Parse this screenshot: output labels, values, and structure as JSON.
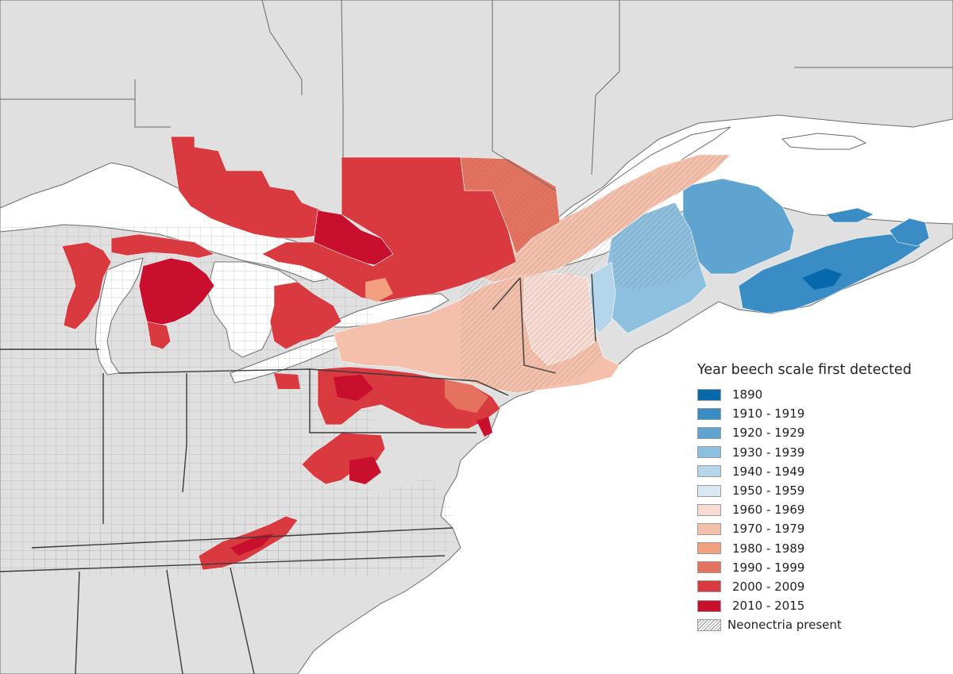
{
  "legend": {
    "title": "Year beech scale first detected",
    "items": [
      {
        "label": "1890",
        "color": "#0868ac"
      },
      {
        "label": "1910 - 1919",
        "color": "#3a8cc4"
      },
      {
        "label": "1920 - 1929",
        "color": "#5fa4d0"
      },
      {
        "label": "1930 - 1939",
        "color": "#8dbfdf"
      },
      {
        "label": "1940 - 1949",
        "color": "#b5d5ea"
      },
      {
        "label": "1950 - 1959",
        "color": "#dbe8f2"
      },
      {
        "label": "1960 - 1969",
        "color": "#f8dcd3"
      },
      {
        "label": "1970 - 1979",
        "color": "#f4c0ab"
      },
      {
        "label": "1980 - 1989",
        "color": "#f2a07f"
      },
      {
        "label": "1990 - 1999",
        "color": "#e5725e"
      },
      {
        "label": "2000 - 2009",
        "color": "#d83a3f"
      },
      {
        "label": "2010 - 2015",
        "color": "#c8102e"
      }
    ],
    "hatch_label": "Neonectria present"
  },
  "map_colors": {
    "water": "#ffffff",
    "land": "#e0e0e0",
    "border": "#4a4a4a"
  }
}
